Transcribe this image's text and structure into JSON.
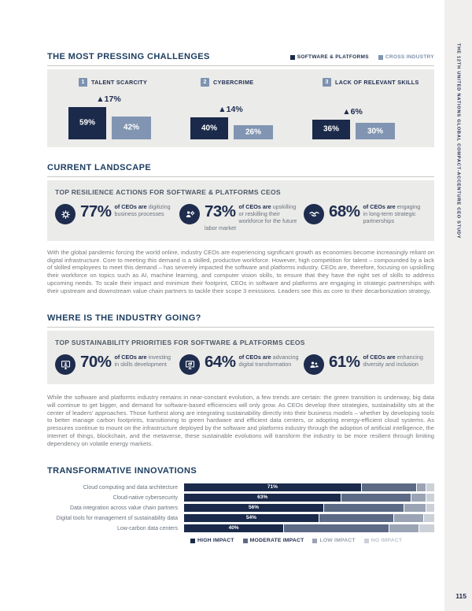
{
  "page": {
    "side_title": "THE 12TH UNITED NATIONS GLOBAL COMPACT-ACCENTURE CEO STUDY",
    "number": "115"
  },
  "colors": {
    "navy": "#1b2a4a",
    "steel_title": "#1d3e60",
    "light_blue": "#8195b2",
    "panel_bg": "#ebebe9",
    "moderate": "#5d6a85",
    "low": "#9ba4b5",
    "none": "#ccd0d8"
  },
  "challenges": {
    "title": "THE MOST PRESSING CHALLENGES",
    "legend": [
      {
        "label": "SOFTWARE & PLATFORMS",
        "color": "#1b2a4a",
        "text_color": "#1e2c4e"
      },
      {
        "label": "CROSS INDUSTRY",
        "color": "#8195b2",
        "text_color": "#7d90ad"
      }
    ],
    "items": [
      {
        "rank": "1",
        "label": "TALENT SCARCITY",
        "delta": "▲17%",
        "software": 59,
        "software_label": "59%",
        "cross": 42,
        "cross_label": "42%"
      },
      {
        "rank": "2",
        "label": "CYBERCRIME",
        "delta": "▲14%",
        "software": 40,
        "software_label": "40%",
        "cross": 26,
        "cross_label": "26%"
      },
      {
        "rank": "3",
        "label": "LACK OF RELEVANT SKILLS",
        "delta": "▲6%",
        "software": 36,
        "software_label": "36%",
        "cross": 30,
        "cross_label": "30%"
      }
    ]
  },
  "current_landscape": {
    "title": "CURRENT LANDSCAPE",
    "panel_label": "TOP RESILIENCE ACTIONS FOR SOFTWARE & PLATFORMS CEOS",
    "stats": [
      {
        "icon": "digitize-icon",
        "value": "77%",
        "bold": "of CEOs are",
        "rest": "digitizing business processes"
      },
      {
        "icon": "upskill-icon",
        "value": "73%",
        "bold": "of CEOs are",
        "rest": "upskilling or reskilling their workforce for the future labor market"
      },
      {
        "icon": "handshake-icon",
        "value": "68%",
        "bold": "of CEOs are",
        "rest": "engaging in long-term strategic partnerships"
      }
    ],
    "paragraph": "With the global pandemic forcing the world online, industry CEOs are experiencing significant growth as economies become increasingly reliant on digital infrastructure. Core to meeting this demand is a skilled, productive workforce. However, high competition for talent – compounded by a lack of skilled employees to meet this demand – has severely impacted the software and platforms industry. CEOs are, therefore, focusing on upskilling their workforce on topics such as AI, machine learning, and computer vision skills, to ensure that they have the right set of skills to address upcoming needs. To scale their impact and minimize their footprint, CEOs in software and platforms are engaging in strategic partnerships with their upstream and downstream value chain partners to tackle their scope 3 emissions. Leaders see this as core to their decarbonization strategy."
  },
  "industry_going": {
    "title": "WHERE IS THE INDUSTRY GOING?",
    "panel_label": "TOP SUSTAINABILITY PRIORITIES FOR SOFTWARE & PLATFORMS CEOS",
    "stats": [
      {
        "icon": "skills-investment-icon",
        "value": "70%",
        "bold": "of CEOs are",
        "rest": "investing in skills development"
      },
      {
        "icon": "digital-transformation-icon",
        "value": "64%",
        "bold": "of CEOs are",
        "rest": "advancing digital transformation"
      },
      {
        "icon": "diversity-icon",
        "value": "61%",
        "bold": "of CEOs are",
        "rest": "enhancing diversity and inclusion"
      }
    ],
    "paragraph": "While the software and platforms industry remains in near-constant evolution, a few trends are certain: the green transition is underway, big data will continue to get bigger, and demand for software-based efficiencies will only grow. As CEOs develop their strategies, sustainability sits at the center of leaders' approaches. Those furthest along are integrating sustainability directly into their business models – whether by developing tools to better manage carbon footprints, transitioning to green hardware and efficient data centers, or adopting energy-efficient cloud systems. As pressures continue to mount on the infrastructure deployed by the software and platforms industry through the adoption of artificial intelligence, the internet of things, blockchain, and the metaverse, these sustainable evolutions will transform the industry to be more resilient through limiting dependency on volatile energy markets."
  },
  "chart_data": {
    "type": "bar",
    "stacked": true,
    "title": "TRANSFORMATIVE INNOVATIONS",
    "categories": [
      "Cloud computing and data architecture",
      "Cloud-native cybersecurity",
      "Data integration across value chain partners",
      "Digital tools for management of sustainability data",
      "Low-carbon data centers"
    ],
    "value_labels": [
      "71%",
      "63%",
      "56%",
      "54%",
      "40%"
    ],
    "series": [
      {
        "name": "HIGH IMPACT",
        "color": "#1b2a4a",
        "text_color": "#1e2c4e",
        "values": [
          71,
          63,
          56,
          54,
          40
        ]
      },
      {
        "name": "MODERATE IMPACT",
        "color": "#5d6a85",
        "text_color": "#1e2c4e",
        "values": [
          22,
          28,
          32,
          30,
          42
        ]
      },
      {
        "name": "LOW IMPACT",
        "color": "#9ba4b5",
        "text_color": "#98a0ac",
        "values": [
          4,
          6,
          9,
          12,
          12
        ]
      },
      {
        "name": "NO IMPACT",
        "color": "#ccd0d8",
        "text_color": "#bdc3cb",
        "values": [
          3,
          3,
          3,
          4,
          6
        ]
      }
    ],
    "xlim": [
      0,
      100
    ],
    "legend_position": "bottom"
  }
}
